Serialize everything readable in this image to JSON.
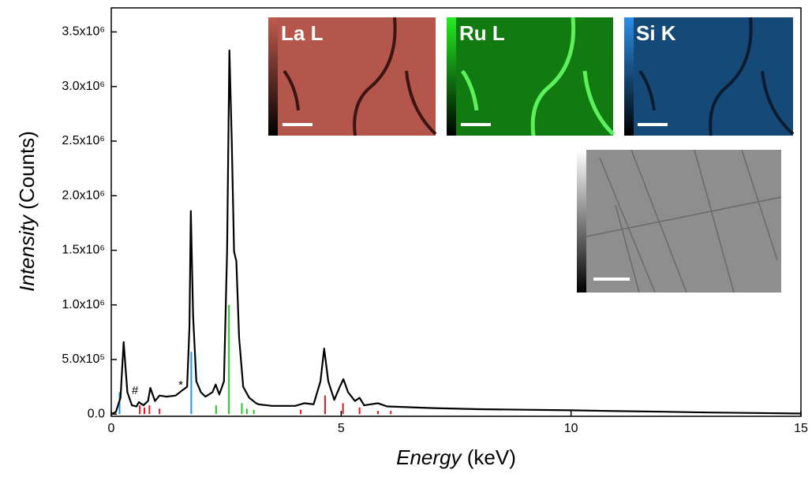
{
  "chart_data": {
    "type": "line",
    "xlabel": "Energy",
    "xlabel_unit": "(keV)",
    "ylabel": "Intensity",
    "ylabel_unit": "(Counts)",
    "xlim": [
      0,
      15
    ],
    "ylim": [
      -20000,
      3720000
    ],
    "xticks": [
      0,
      5,
      10,
      15
    ],
    "yticks": [
      {
        "value": 0,
        "label": "0.0"
      },
      {
        "value": 500000,
        "label": "5.0x10⁵"
      },
      {
        "value": 1000000,
        "label": "1.0x10⁶"
      },
      {
        "value": 1500000,
        "label": "1.5x10⁶"
      },
      {
        "value": 2000000,
        "label": "2.0x10⁶"
      },
      {
        "value": 2500000,
        "label": "2.5x10⁶"
      },
      {
        "value": 3000000,
        "label": "3.0x10⁶"
      },
      {
        "value": 3500000,
        "label": "3.5x10⁶"
      }
    ],
    "series": [
      {
        "color": "#000000",
        "x": [
          0,
          0.1,
          0.2,
          0.27,
          0.35,
          0.45,
          0.55,
          0.6,
          0.7,
          0.8,
          0.85,
          0.95,
          1.05,
          1.2,
          1.4,
          1.55,
          1.65,
          1.7,
          1.73,
          1.78,
          1.85,
          1.95,
          2.05,
          2.2,
          2.27,
          2.35,
          2.45,
          2.52,
          2.57,
          2.62,
          2.67,
          2.72,
          2.78,
          2.87,
          3.0,
          3.15,
          3.2,
          3.5,
          4.0,
          4.2,
          4.4,
          4.55,
          4.63,
          4.72,
          4.85,
          4.97,
          5.05,
          5.15,
          5.3,
          5.4,
          5.5,
          5.8,
          6.0,
          7,
          8,
          9,
          10,
          11,
          12,
          13,
          14,
          15
        ],
        "values": [
          0,
          20000,
          150000,
          660000,
          200000,
          80000,
          70000,
          110000,
          80000,
          120000,
          240000,
          120000,
          170000,
          160000,
          170000,
          220000,
          250000,
          800000,
          1860000,
          900000,
          300000,
          200000,
          160000,
          200000,
          270000,
          180000,
          300000,
          1500000,
          3330000,
          2500000,
          1490000,
          1400000,
          700000,
          250000,
          150000,
          100000,
          90000,
          75000,
          75000,
          100000,
          90000,
          300000,
          600000,
          300000,
          130000,
          250000,
          320000,
          200000,
          120000,
          150000,
          80000,
          100000,
          70000,
          55000,
          45000,
          40000,
          35000,
          28000,
          22000,
          15000,
          10000,
          5000
        ]
      }
    ],
    "peak_lines": [
      {
        "color": "#1e90ff",
        "x": [
          0.18,
          1.74
        ],
        "values": [
          200000,
          570000
        ]
      },
      {
        "color": "#22cc22",
        "x": [
          2.28,
          2.56,
          2.84,
          2.95,
          3.1
        ],
        "values": [
          80000,
          1000000,
          100000,
          50000,
          40000
        ]
      },
      {
        "color": "#e8141c",
        "x": [
          0.62,
          0.72,
          0.83,
          1.05,
          4.12,
          4.65,
          5.04,
          5.4,
          5.8,
          6.08
        ],
        "values": [
          80000,
          60000,
          80000,
          50000,
          40000,
          170000,
          100000,
          60000,
          30000,
          30000
        ]
      }
    ],
    "annotations": [
      "#",
      "*"
    ],
    "inset_labels": [
      "La L",
      "Ru L",
      "Si K"
    ]
  }
}
